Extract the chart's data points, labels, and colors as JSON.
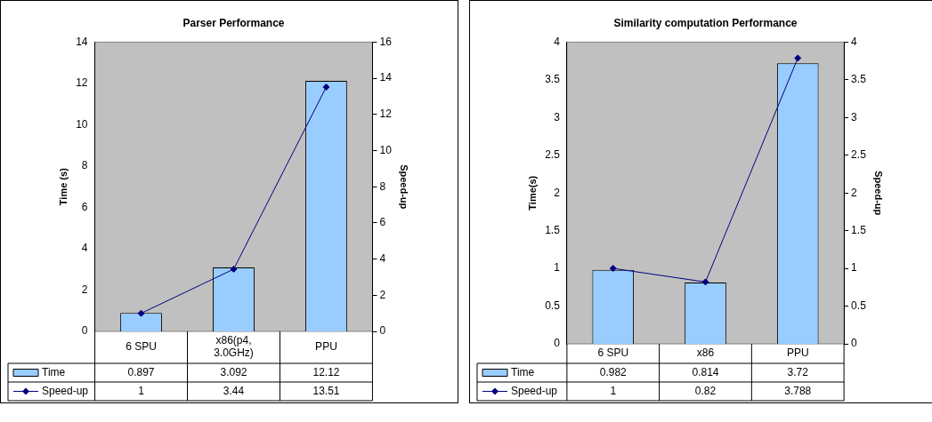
{
  "chart_data": [
    {
      "type": "bar",
      "title": "Parser Performance",
      "ylabel": "Time (s)",
      "y2label": "Speed-up",
      "categories": [
        "6 SPU",
        "x86(p4, 3.0GHz)",
        "PPU"
      ],
      "series": [
        {
          "name": "Time",
          "color": "#99ccff",
          "values": [
            0.897,
            3.092,
            12.12
          ]
        },
        {
          "name": "Speed-up",
          "type": "line",
          "axis": "y2",
          "color": "#000080",
          "values": [
            1,
            3.44,
            13.51
          ]
        }
      ],
      "ylim": [
        0,
        14
      ],
      "yticks": [
        0,
        2,
        4,
        6,
        8,
        10,
        12,
        14
      ],
      "y2lim": [
        0,
        16
      ],
      "y2ticks": [
        0,
        2,
        4,
        6,
        8,
        10,
        12,
        14,
        16
      ],
      "grid": false,
      "legend": "bottom",
      "data_labels": true,
      "marker": "diamond"
    },
    {
      "type": "bar",
      "title": "Similarity computation Performance",
      "ylabel": "Time(s)",
      "y2label": "Speed-up",
      "categories": [
        "6 SPU",
        "x86",
        "PPU"
      ],
      "series": [
        {
          "name": "Time",
          "color": "#99ccff",
          "values": [
            0.982,
            0.814,
            3.72
          ]
        },
        {
          "name": "Speed-up",
          "type": "line",
          "axis": "y2",
          "color": "#000080",
          "values": [
            1,
            0.82,
            3.788
          ]
        }
      ],
      "ylim": [
        0,
        4
      ],
      "yticks": [
        0,
        0.5,
        1,
        1.5,
        2,
        2.5,
        3,
        3.5,
        4
      ],
      "y2lim": [
        0,
        4
      ],
      "y2ticks": [
        0,
        0.5,
        1,
        1.5,
        2,
        2.5,
        3,
        3.5,
        4
      ],
      "grid": false,
      "legend": "bottom",
      "data_labels": true,
      "marker": "diamond"
    }
  ]
}
